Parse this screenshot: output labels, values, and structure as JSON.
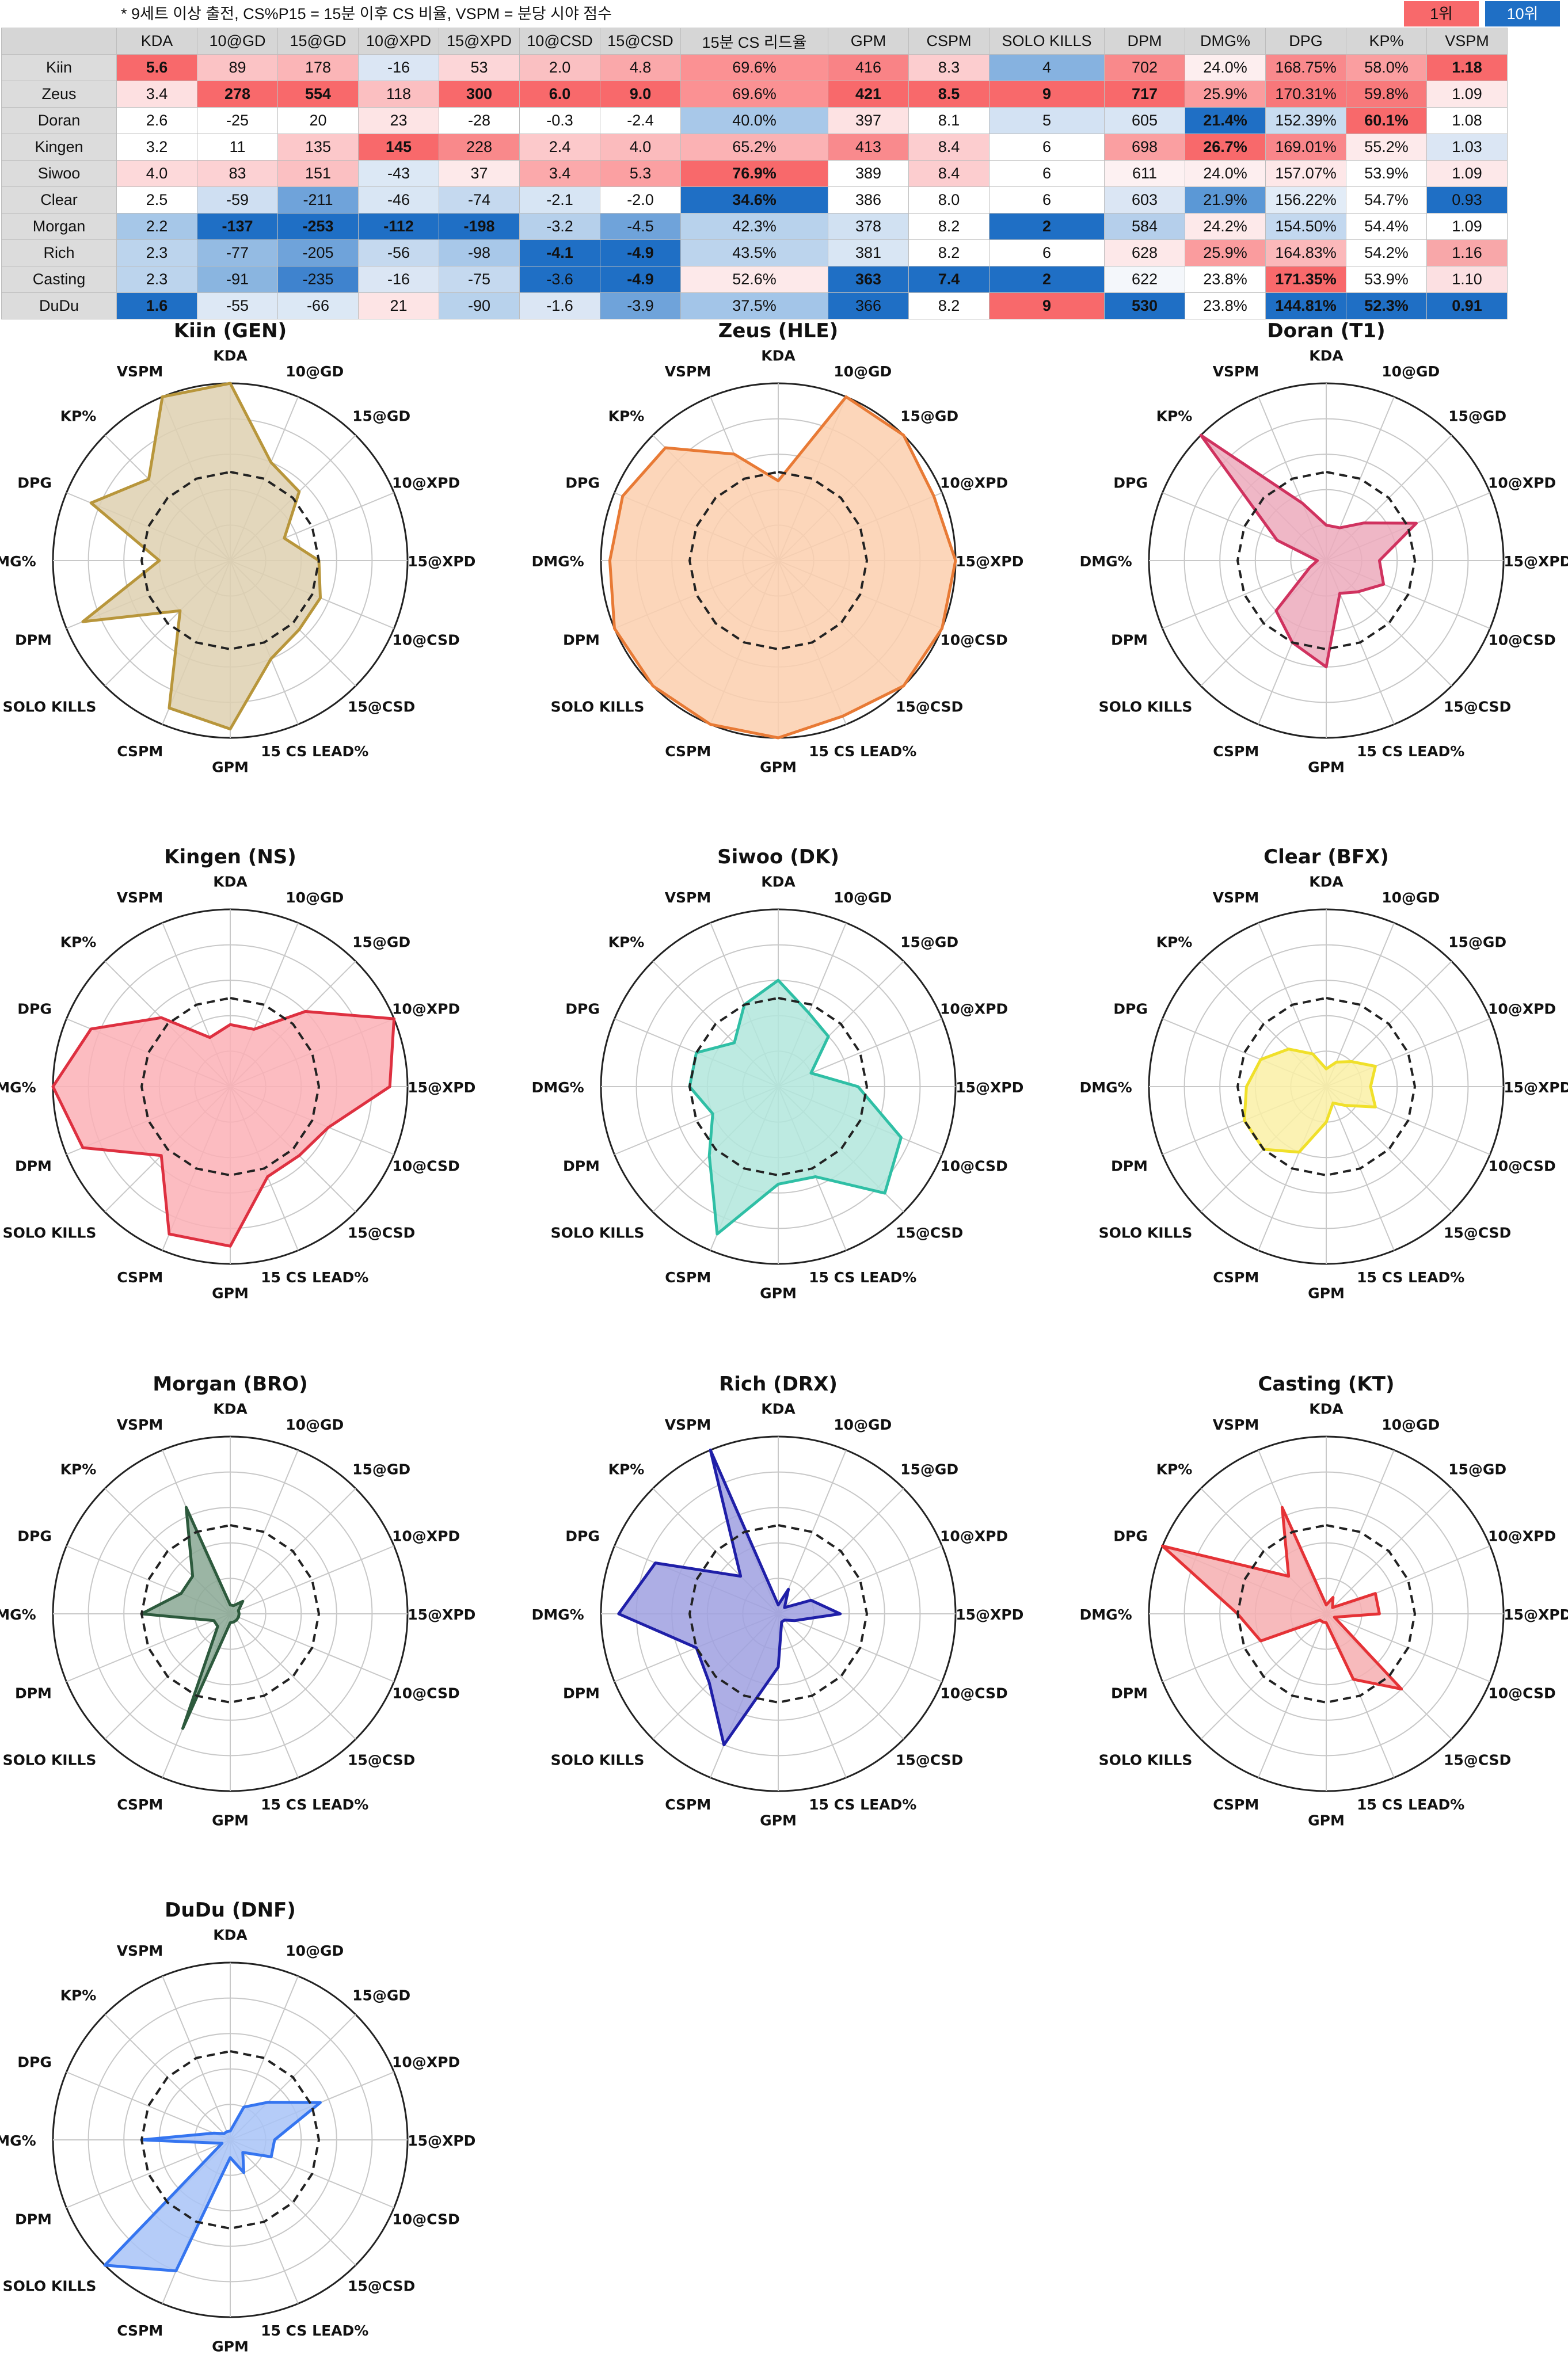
{
  "header": {
    "note": "* 9세트 이상 출전, CS%P15 = 15분 이후 CS 비율, VSPM = 분당 시야 점수",
    "legend_top": "1위",
    "legend_bottom": "10위"
  },
  "table": {
    "columns": [
      "",
      "KDA",
      "10@GD",
      "15@GD",
      "10@XPD",
      "15@XPD",
      "10@CSD",
      "15@CSD",
      "15분 CS 리드율",
      "GPM",
      "CSPM",
      "SOLO KILLS",
      "DPM",
      "DMG%",
      "DPG",
      "KP%",
      "VSPM"
    ],
    "rows": [
      {
        "player": "Kiin",
        "cells": [
          "5.6",
          "89",
          "178",
          "-16",
          "53",
          "2.0",
          "4.8",
          "69.6%",
          "416",
          "8.3",
          "4",
          "702",
          "24.0%",
          "168.75%",
          "58.0%",
          "1.18"
        ]
      },
      {
        "player": "Zeus",
        "cells": [
          "3.4",
          "278",
          "554",
          "118",
          "300",
          "6.0",
          "9.0",
          "69.6%",
          "421",
          "8.5",
          "9",
          "717",
          "25.9%",
          "170.31%",
          "59.8%",
          "1.09"
        ]
      },
      {
        "player": "Doran",
        "cells": [
          "2.6",
          "-25",
          "20",
          "23",
          "-28",
          "-0.3",
          "-2.4",
          "40.0%",
          "397",
          "8.1",
          "5",
          "605",
          "21.4%",
          "152.39%",
          "60.1%",
          "1.08"
        ]
      },
      {
        "player": "Kingen",
        "cells": [
          "3.2",
          "11",
          "135",
          "145",
          "228",
          "2.4",
          "4.0",
          "65.2%",
          "413",
          "8.4",
          "6",
          "698",
          "26.7%",
          "169.01%",
          "55.2%",
          "1.03"
        ]
      },
      {
        "player": "Siwoo",
        "cells": [
          "4.0",
          "83",
          "151",
          "-43",
          "37",
          "3.4",
          "5.3",
          "76.9%",
          "389",
          "8.4",
          "6",
          "611",
          "24.0%",
          "157.07%",
          "53.9%",
          "1.09"
        ]
      },
      {
        "player": "Clear",
        "cells": [
          "2.5",
          "-59",
          "-211",
          "-46",
          "-74",
          "-2.1",
          "-2.0",
          "34.6%",
          "386",
          "8.0",
          "6",
          "603",
          "21.9%",
          "156.22%",
          "54.7%",
          "0.93"
        ]
      },
      {
        "player": "Morgan",
        "cells": [
          "2.2",
          "-137",
          "-253",
          "-112",
          "-198",
          "-3.2",
          "-4.5",
          "42.3%",
          "378",
          "8.2",
          "2",
          "584",
          "24.2%",
          "154.50%",
          "54.4%",
          "1.09"
        ]
      },
      {
        "player": "Rich",
        "cells": [
          "2.3",
          "-77",
          "-205",
          "-56",
          "-98",
          "-4.1",
          "-4.9",
          "43.5%",
          "381",
          "8.2",
          "6",
          "628",
          "25.9%",
          "164.83%",
          "54.2%",
          "1.16"
        ]
      },
      {
        "player": "Casting",
        "cells": [
          "2.3",
          "-91",
          "-235",
          "-16",
          "-75",
          "-3.6",
          "-4.9",
          "52.6%",
          "363",
          "7.4",
          "2",
          "622",
          "23.8%",
          "171.35%",
          "53.9%",
          "1.10"
        ]
      },
      {
        "player": "DuDu",
        "cells": [
          "1.6",
          "-55",
          "-66",
          "21",
          "-90",
          "-1.6",
          "-3.9",
          "37.5%",
          "366",
          "8.2",
          "9",
          "530",
          "23.8%",
          "144.81%",
          "52.3%",
          "0.91"
        ]
      }
    ],
    "bold_cells": [
      [
        0,
        0
      ],
      [
        0,
        15
      ],
      [
        1,
        1
      ],
      [
        1,
        2
      ],
      [
        1,
        4
      ],
      [
        1,
        5
      ],
      [
        1,
        6
      ],
      [
        1,
        8
      ],
      [
        1,
        9
      ],
      [
        1,
        10
      ],
      [
        1,
        11
      ],
      [
        2,
        14
      ],
      [
        2,
        12
      ],
      [
        3,
        3
      ],
      [
        3,
        12
      ],
      [
        4,
        7
      ],
      [
        5,
        7
      ],
      [
        6,
        1
      ],
      [
        6,
        2
      ],
      [
        6,
        3
      ],
      [
        6,
        4
      ],
      [
        6,
        10
      ],
      [
        7,
        5
      ],
      [
        7,
        6
      ],
      [
        8,
        6
      ],
      [
        8,
        8
      ],
      [
        8,
        9
      ],
      [
        8,
        10
      ],
      [
        8,
        13
      ],
      [
        9,
        0
      ],
      [
        9,
        10
      ],
      [
        9,
        11
      ],
      [
        9,
        13
      ],
      [
        9,
        14
      ],
      [
        9,
        15
      ]
    ],
    "cell_colors": [
      [
        "#f8696b",
        "#fbc3c5",
        "#fbb5b7",
        "#dbe6f4",
        "#fcd6d8",
        "#fac0c2",
        "#faa8aa",
        "#fb9193",
        "#f98386",
        "#fccdcf",
        "#86b2e0",
        "#f9898b",
        "#fdeeef",
        "#f9898c",
        "#fa9ea0",
        "#f8696b"
      ],
      [
        "#fde0e1",
        "#f8696b",
        "#f8696b",
        "#fbbfc1",
        "#f8696b",
        "#f8696b",
        "#f8696b",
        "#fb9193",
        "#f8696b",
        "#f8696b",
        "#f8696b",
        "#f8696b",
        "#fa9c9e",
        "#f8777a",
        "#f8797b",
        "#fde8e9"
      ],
      [
        "#ffffff",
        "#ffffff",
        "#ffffff",
        "#fde4e5",
        "#ffffff",
        "#ffffff",
        "#ffffff",
        "#a8c8e9",
        "#fde2e3",
        "#ffffff",
        "#d3e2f3",
        "#d8e5f4",
        "#1f6fc5",
        "#c8dcf0",
        "#f8696b",
        "#ffffff"
      ],
      [
        "#ffffff",
        "#ffffff",
        "#fcc8ca",
        "#f8696b",
        "#f9898b",
        "#fcc9cb",
        "#fbbbbd",
        "#fbb2b4",
        "#f98a8d",
        "#fccdcf",
        "#ffffff",
        "#fa9fa1",
        "#f8696b",
        "#f9868a",
        "#fdeaeb",
        "#dbe6f4"
      ],
      [
        "#fdd9da",
        "#fcd1d3",
        "#fbc0c2",
        "#dce8f5",
        "#fde9ea",
        "#fba9ab",
        "#fba0a2",
        "#f8696b",
        "#ffffff",
        "#fccdcf",
        "#ffffff",
        "#fdf1f2",
        "#fdeeef",
        "#fde7e8",
        "#ffffff",
        "#fde8e9"
      ],
      [
        "#ffffff",
        "#cfdff2",
        "#6fa3da",
        "#d9e6f4",
        "#c5d9ef",
        "#d7e5f4",
        "#ffffff",
        "#1f6fc5",
        "#ffffff",
        "#ffffff",
        "#ffffff",
        "#dbe6f4",
        "#5b98d6",
        "#e2ecf7",
        "#ffffff",
        "#1f6fc5"
      ],
      [
        "#a6c7e8",
        "#1f6fc5",
        "#1f6fc5",
        "#1f6fc5",
        "#1f6fc5",
        "#b6d0eb",
        "#6fa3da",
        "#b8d2ec",
        "#d1e1f2",
        "#ffffff",
        "#1f6fc5",
        "#b5cfeb",
        "#fde9ea",
        "#c3d8ef",
        "#ffffff",
        "#ffffff"
      ],
      [
        "#bcd4ed",
        "#94bbe3",
        "#6fa3da",
        "#c5d9ef",
        "#a8c8e9",
        "#1f6fc5",
        "#1f6fc5",
        "#bcd4ed",
        "#d9e6f4",
        "#ffffff",
        "#ffffff",
        "#fde8e9",
        "#fa9c9e",
        "#fbb8ba",
        "#ffffff",
        "#f8a7a9"
      ],
      [
        "#bcd4ed",
        "#8ab5e0",
        "#3f83ce",
        "#dbe6f4",
        "#c5d9ef",
        "#1f6fc5",
        "#1f6fc5",
        "#fde9ea",
        "#1f6fc5",
        "#1f6fc5",
        "#1f6fc5",
        "#f4f7fb",
        "#ffffff",
        "#f8696b",
        "#ffffff",
        "#fce0e2"
      ],
      [
        "#1f6fc5",
        "#dde8f5",
        "#dce8f5",
        "#fde4e5",
        "#b8d2ec",
        "#dbe6f4",
        "#6fa3da",
        "#a3c5e8",
        "#1f6fc5",
        "#ffffff",
        "#f8696b",
        "#1f6fc5",
        "#ffffff",
        "#1f6fc5",
        "#1f6fc5",
        "#1f6fc5"
      ]
    ]
  },
  "chart_data": [
    {
      "type": "radar",
      "title": "Kiin (GEN)",
      "color": "#b8963b",
      "fill": "#ded0b0",
      "axes": [
        "KDA",
        "10@GD",
        "15@GD",
        "10@XPD",
        "15@XPD",
        "10@CSD",
        "15@CSD",
        "15 CS LEAD%",
        "GPM",
        "CSPM",
        "SOLO KILLS",
        "DPM",
        "DMG%",
        "DPG",
        "KP%",
        "VSPM"
      ],
      "values": [
        1.0,
        0.6,
        0.55,
        0.33,
        0.5,
        0.55,
        0.55,
        0.6,
        0.95,
        0.9,
        0.4,
        0.9,
        0.4,
        0.85,
        0.65,
        1.0
      ],
      "baseline": [
        0.5,
        0.5,
        0.5,
        0.5,
        0.5,
        0.5,
        0.5,
        0.5,
        0.5,
        0.5,
        0.5,
        0.5,
        0.5,
        0.5,
        0.5,
        0.5
      ]
    },
    {
      "type": "radar",
      "title": "Zeus (HLE)",
      "color": "#e87a35",
      "fill": "#fbcfae",
      "axes": [
        "KDA",
        "10@GD",
        "15@GD",
        "10@XPD",
        "15@XPD",
        "10@CSD",
        "15@CSD",
        "15 CS LEAD%",
        "GPM",
        "CSPM",
        "SOLO KILLS",
        "DPM",
        "DMG%",
        "DPG",
        "KP%",
        "VSPM"
      ],
      "values": [
        0.45,
        1.0,
        1.0,
        0.95,
        1.0,
        1.0,
        1.0,
        0.95,
        1.0,
        1.0,
        1.0,
        1.0,
        0.95,
        0.95,
        0.9,
        0.65
      ],
      "baseline": [
        0.5,
        0.5,
        0.5,
        0.5,
        0.5,
        0.5,
        0.5,
        0.5,
        0.5,
        0.5,
        0.5,
        0.5,
        0.5,
        0.5,
        0.5,
        0.5
      ]
    },
    {
      "type": "radar",
      "title": "Doran (T1)",
      "color": "#d0325f",
      "fill": "#ecaabc",
      "axes": [
        "KDA",
        "10@GD",
        "15@GD",
        "10@XPD",
        "15@XPD",
        "10@CSD",
        "15@CSD",
        "15 CS LEAD%",
        "GPM",
        "CSPM",
        "SOLO KILLS",
        "DPM",
        "DMG%",
        "DPG",
        "KP%",
        "VSPM"
      ],
      "values": [
        0.2,
        0.2,
        0.3,
        0.55,
        0.3,
        0.35,
        0.25,
        0.2,
        0.6,
        0.5,
        0.4,
        0.1,
        0.05,
        0.3,
        1.0,
        0.35
      ],
      "baseline": [
        0.5,
        0.5,
        0.5,
        0.5,
        0.5,
        0.5,
        0.5,
        0.5,
        0.5,
        0.5,
        0.5,
        0.5,
        0.5,
        0.5,
        0.5,
        0.5
      ]
    },
    {
      "type": "radar",
      "title": "Kingen (NS)",
      "color": "#de3040",
      "fill": "#fbb0b6",
      "axes": [
        "KDA",
        "10@GD",
        "15@GD",
        "10@XPD",
        "15@XPD",
        "10@CSD",
        "15@CSD",
        "15 CS LEAD%",
        "GPM",
        "CSPM",
        "SOLO KILLS",
        "DPM",
        "DMG%",
        "DPG",
        "KP%",
        "VSPM"
      ],
      "values": [
        0.35,
        0.35,
        0.6,
        1.0,
        0.9,
        0.6,
        0.55,
        0.55,
        0.9,
        0.9,
        0.55,
        0.9,
        1.0,
        0.85,
        0.55,
        0.3
      ],
      "baseline": [
        0.5,
        0.5,
        0.5,
        0.5,
        0.5,
        0.5,
        0.5,
        0.5,
        0.5,
        0.5,
        0.5,
        0.5,
        0.5,
        0.5,
        0.5,
        0.5
      ]
    },
    {
      "type": "radar",
      "title": "Siwoo (DK)",
      "color": "#2fbfa5",
      "fill": "#b2e6dc",
      "axes": [
        "KDA",
        "10@GD",
        "15@GD",
        "10@XPD",
        "15@XPD",
        "10@CSD",
        "15@CSD",
        "15 CS LEAD%",
        "GPM",
        "CSPM",
        "SOLO KILLS",
        "DPM",
        "DMG%",
        "DPG",
        "KP%",
        "VSPM"
      ],
      "values": [
        0.6,
        0.45,
        0.4,
        0.2,
        0.45,
        0.75,
        0.85,
        0.55,
        0.55,
        0.9,
        0.55,
        0.4,
        0.5,
        0.5,
        0.35,
        0.5
      ],
      "baseline": [
        0.5,
        0.5,
        0.5,
        0.5,
        0.5,
        0.5,
        0.5,
        0.5,
        0.5,
        0.5,
        0.5,
        0.5,
        0.5,
        0.5,
        0.5,
        0.5
      ]
    },
    {
      "type": "radar",
      "title": "Clear (BFX)",
      "color": "#f0e02a",
      "fill": "#faf0a6",
      "axes": [
        "KDA",
        "10@GD",
        "15@GD",
        "10@XPD",
        "15@XPD",
        "10@CSD",
        "15@CSD",
        "15 CS LEAD%",
        "GPM",
        "CSPM",
        "SOLO KILLS",
        "DPM",
        "DMG%",
        "DPG",
        "KP%",
        "VSPM"
      ],
      "values": [
        0.1,
        0.15,
        0.2,
        0.3,
        0.25,
        0.3,
        0.15,
        0.1,
        0.2,
        0.4,
        0.5,
        0.5,
        0.45,
        0.4,
        0.3,
        0.2
      ],
      "baseline": [
        0.5,
        0.5,
        0.5,
        0.5,
        0.5,
        0.5,
        0.5,
        0.5,
        0.5,
        0.5,
        0.5,
        0.5,
        0.5,
        0.5,
        0.5,
        0.5
      ]
    },
    {
      "type": "radar",
      "title": "Morgan (BRO)",
      "color": "#2d5a3d",
      "fill": "#8aa894",
      "axes": [
        "KDA",
        "10@GD",
        "15@GD",
        "10@XPD",
        "15@XPD",
        "10@CSD",
        "15@CSD",
        "15 CS LEAD%",
        "GPM",
        "CSPM",
        "SOLO KILLS",
        "DPM",
        "DMG%",
        "DPG",
        "KP%",
        "VSPM"
      ],
      "values": [
        0.05,
        0.05,
        0.1,
        0.05,
        0.05,
        0.05,
        0.05,
        0.05,
        0.05,
        0.7,
        0.1,
        0.1,
        0.5,
        0.3,
        0.3,
        0.65
      ],
      "baseline": [
        0.5,
        0.5,
        0.5,
        0.5,
        0.5,
        0.5,
        0.5,
        0.5,
        0.5,
        0.5,
        0.5,
        0.5,
        0.5,
        0.5,
        0.5,
        0.5
      ]
    },
    {
      "type": "radar",
      "title": "Rich (DRX)",
      "color": "#1f1fa8",
      "fill": "#9fa0e0",
      "axes": [
        "KDA",
        "10@GD",
        "15@GD",
        "10@XPD",
        "15@XPD",
        "10@CSD",
        "15@CSD",
        "15 CS LEAD%",
        "GPM",
        "CSPM",
        "SOLO KILLS",
        "DPM",
        "DMG%",
        "DPG",
        "KP%",
        "VSPM"
      ],
      "values": [
        0.05,
        0.15,
        0.05,
        0.2,
        0.35,
        0.1,
        0.05,
        0.05,
        0.3,
        0.8,
        0.55,
        0.5,
        0.9,
        0.75,
        0.3,
        1.0
      ],
      "baseline": [
        0.5,
        0.5,
        0.5,
        0.5,
        0.5,
        0.5,
        0.5,
        0.5,
        0.5,
        0.5,
        0.5,
        0.5,
        0.5,
        0.5,
        0.5,
        0.5
      ]
    },
    {
      "type": "radar",
      "title": "Casting (KT)",
      "color": "#e53236",
      "fill": "#f6aeb0",
      "axes": [
        "KDA",
        "10@GD",
        "15@GD",
        "10@XPD",
        "15@XPD",
        "10@CSD",
        "15@CSD",
        "15 CS LEAD%",
        "GPM",
        "CSPM",
        "SOLO KILLS",
        "DPM",
        "DMG%",
        "DPG",
        "KP%",
        "VSPM"
      ],
      "values": [
        0.05,
        0.1,
        0.05,
        0.3,
        0.3,
        0.05,
        0.6,
        0.4,
        0.05,
        0.05,
        0.05,
        0.4,
        0.5,
        1.0,
        0.3,
        0.65
      ],
      "baseline": [
        0.5,
        0.5,
        0.5,
        0.5,
        0.5,
        0.5,
        0.5,
        0.5,
        0.5,
        0.5,
        0.5,
        0.5,
        0.5,
        0.5,
        0.5,
        0.5
      ]
    },
    {
      "type": "radar",
      "title": "DuDu (DNF)",
      "color": "#3575f0",
      "fill": "#a8c3f7",
      "axes": [
        "KDA",
        "10@GD",
        "15@GD",
        "10@XPD",
        "15@XPD",
        "10@CSD",
        "15@CSD",
        "15 CS LEAD%",
        "GPM",
        "CSPM",
        "SOLO KILLS",
        "DPM",
        "DMG%",
        "DPG",
        "KP%",
        "VSPM"
      ],
      "values": [
        0.05,
        0.2,
        0.3,
        0.55,
        0.25,
        0.25,
        0.1,
        0.2,
        0.1,
        0.8,
        1.0,
        0.05,
        0.5,
        0.1,
        0.05,
        0.05
      ],
      "baseline": [
        0.5,
        0.5,
        0.5,
        0.5,
        0.5,
        0.5,
        0.5,
        0.5,
        0.5,
        0.5,
        0.5,
        0.5,
        0.5,
        0.5,
        0.5,
        0.5
      ]
    }
  ]
}
